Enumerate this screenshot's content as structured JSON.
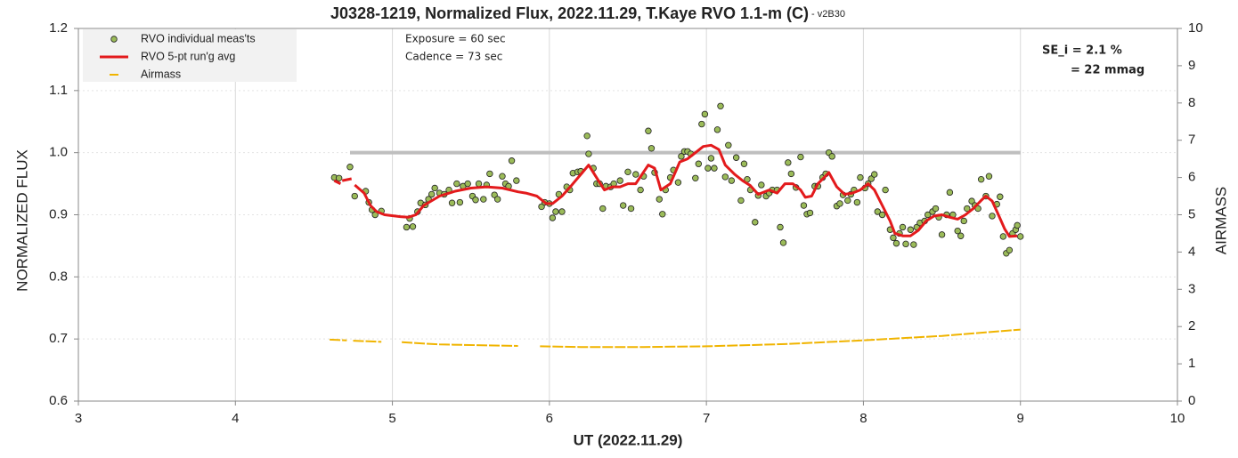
{
  "chart_data": {
    "type": "scatter",
    "title": "J0328-1219, Normalized Flux, 2022.11.29, T.Kaye RVO 1.1-m (C)",
    "subtitle": " - v2B30",
    "x_label": "UT (2022.11.29)",
    "y_label": "NORMALIZED FLUX",
    "y2_label": "AIRMASS",
    "annotations": [
      "Exposure = 60 sec",
      "Cadence  = 73 sec",
      "SE_i = 2.1 %",
      "= 22 mmag"
    ],
    "xlim": [
      3,
      10
    ],
    "xticks": [
      3,
      4,
      5,
      6,
      7,
      8,
      9,
      10
    ],
    "ylim": [
      0.6,
      1.2
    ],
    "yticks": [
      0.6,
      0.7,
      0.8,
      0.9,
      {
        "value": 1,
        "label": "1.0"
      },
      1.1,
      1.2
    ],
    "y2lim": [
      0,
      10
    ],
    "y2ticks": [
      0,
      1,
      2,
      3,
      4,
      5,
      6,
      7,
      8,
      9,
      10
    ],
    "grid": true,
    "legend": "upper left",
    "reference_line": {
      "x": [
        4.73,
        9.0
      ],
      "value": 1.0,
      "color": "#bfbfbf"
    },
    "series": [
      {
        "name": "RVO individual meas'ts",
        "type": "scatter",
        "color": "#9bbb59",
        "x": [
          4.63,
          4.66,
          4.73,
          4.76,
          4.83,
          4.85,
          4.87,
          4.89,
          4.93,
          5.09,
          5.11,
          5.13,
          5.16,
          5.18,
          5.21,
          5.23,
          5.25,
          5.27,
          5.3,
          5.33,
          5.36,
          5.38,
          5.41,
          5.43,
          5.45,
          5.48,
          5.51,
          5.53,
          5.55,
          5.58,
          5.6,
          5.62,
          5.65,
          5.67,
          5.7,
          5.72,
          5.74,
          5.76,
          5.79,
          5.95,
          5.97,
          6.0,
          6.02,
          6.04,
          6.06,
          6.08,
          6.11,
          6.13,
          6.15,
          6.18,
          6.2,
          6.24,
          6.25,
          6.28,
          6.3,
          6.32,
          6.34,
          6.36,
          6.39,
          6.41,
          6.45,
          6.47,
          6.5,
          6.52,
          6.55,
          6.58,
          6.6,
          6.63,
          6.65,
          6.67,
          6.7,
          6.72,
          6.74,
          6.77,
          6.79,
          6.82,
          6.84,
          6.86,
          6.88,
          6.9,
          6.93,
          6.95,
          6.97,
          6.99,
          7.01,
          7.03,
          7.05,
          7.07,
          7.09,
          7.12,
          7.14,
          7.16,
          7.19,
          7.22,
          7.24,
          7.26,
          7.28,
          7.31,
          7.33,
          7.35,
          7.38,
          7.4,
          7.42,
          7.45,
          7.47,
          7.49,
          7.52,
          7.54,
          7.57,
          7.6,
          7.62,
          7.64,
          7.66,
          7.69,
          7.71,
          7.74,
          7.76,
          7.78,
          7.8,
          7.83,
          7.85,
          7.87,
          7.9,
          7.92,
          7.94,
          7.96,
          7.98,
          8.01,
          8.03,
          8.05,
          8.07,
          8.09,
          8.12,
          8.14,
          8.17,
          8.19,
          8.21,
          8.23,
          8.25,
          8.27,
          8.3,
          8.32,
          8.34,
          8.36,
          8.39,
          8.41,
          8.44,
          8.46,
          8.48,
          8.5,
          8.53,
          8.55,
          8.57,
          8.6,
          8.62,
          8.64,
          8.66,
          8.69,
          8.71,
          8.73,
          8.75,
          8.78,
          8.8,
          8.82,
          8.85,
          8.87,
          8.89,
          8.91,
          8.93,
          8.95,
          8.97,
          8.98,
          9.0
        ],
        "values": [
          0.96,
          0.959,
          0.977,
          0.93,
          0.938,
          0.92,
          0.908,
          0.9,
          0.906,
          0.88,
          0.894,
          0.881,
          0.905,
          0.919,
          0.916,
          0.925,
          0.933,
          0.943,
          0.935,
          0.933,
          0.94,
          0.919,
          0.95,
          0.92,
          0.946,
          0.95,
          0.93,
          0.924,
          0.95,
          0.925,
          0.948,
          0.966,
          0.932,
          0.925,
          0.962,
          0.95,
          0.946,
          0.987,
          0.955,
          0.913,
          0.92,
          0.918,
          0.895,
          0.905,
          0.933,
          0.905,
          0.945,
          0.94,
          0.967,
          0.969,
          0.97,
          1.027,
          0.998,
          0.975,
          0.95,
          0.95,
          0.91,
          0.946,
          0.945,
          0.95,
          0.955,
          0.915,
          0.969,
          0.91,
          0.965,
          0.94,
          0.962,
          1.035,
          1.007,
          0.968,
          0.925,
          0.901,
          0.94,
          0.96,
          0.972,
          0.952,
          0.994,
          1.002,
          1.002,
          0.998,
          0.959,
          0.982,
          1.046,
          1.062,
          0.975,
          0.991,
          0.975,
          1.037,
          1.075,
          0.961,
          1.012,
          0.955,
          0.992,
          0.923,
          0.982,
          0.957,
          0.94,
          0.888,
          0.931,
          0.948,
          0.93,
          0.935,
          0.94,
          0.94,
          0.88,
          0.855,
          0.984,
          0.966,
          0.944,
          0.993,
          0.915,
          0.901,
          0.903,
          0.946,
          0.946,
          0.96,
          0.966,
          1.0,
          0.994,
          0.914,
          0.918,
          0.932,
          0.923,
          0.933,
          0.94,
          0.92,
          0.96,
          0.943,
          0.95,
          0.958,
          0.965,
          0.905,
          0.9,
          0.94,
          0.876,
          0.863,
          0.854,
          0.87,
          0.88,
          0.853,
          0.876,
          0.852,
          0.88,
          0.887,
          0.89,
          0.9,
          0.905,
          0.91,
          0.896,
          0.868,
          0.9,
          0.936,
          0.9,
          0.874,
          0.866,
          0.89,
          0.91,
          0.922,
          0.915,
          0.91,
          0.957,
          0.93,
          0.962,
          0.898,
          0.917,
          0.929,
          0.865,
          0.838,
          0.843,
          0.87,
          0.876,
          0.883,
          0.865
        ]
      },
      {
        "name": "RVO 5-pt run'g avg",
        "type": "line",
        "color": "#e31a1c",
        "x": [
          4.63,
          4.67,
          null,
          4.68,
          4.74,
          null,
          4.76,
          4.82,
          4.86,
          4.9,
          4.95,
          5.05,
          5.1,
          5.15,
          5.2,
          5.3,
          5.4,
          5.5,
          5.6,
          5.7,
          5.8,
          5.85,
          5.92,
          5.98,
          6.02,
          6.08,
          6.14,
          6.2,
          6.25,
          6.3,
          6.35,
          6.4,
          6.45,
          6.5,
          6.55,
          6.63,
          6.67,
          6.71,
          6.74,
          6.77,
          6.83,
          6.88,
          6.93,
          6.98,
          7.03,
          7.08,
          7.12,
          7.18,
          7.23,
          7.28,
          7.33,
          7.4,
          7.45,
          7.5,
          7.55,
          7.6,
          7.63,
          7.67,
          7.71,
          7.75,
          7.78,
          7.83,
          7.88,
          7.93,
          7.98,
          8.03,
          8.07,
          8.12,
          8.17,
          8.2,
          8.25,
          8.3,
          8.35,
          8.4,
          8.45,
          8.5,
          8.55,
          8.6,
          8.65,
          8.7,
          8.75,
          8.78,
          8.82,
          8.86,
          8.9,
          8.93,
          8.98
        ],
        "values": [
          0.955,
          0.95,
          null,
          0.955,
          0.958,
          null,
          0.948,
          0.935,
          0.915,
          0.905,
          0.9,
          0.897,
          0.896,
          0.9,
          0.915,
          0.93,
          0.938,
          0.943,
          0.945,
          0.943,
          0.937,
          0.935,
          0.93,
          0.918,
          0.918,
          0.93,
          0.947,
          0.965,
          0.98,
          0.96,
          0.94,
          0.945,
          0.945,
          0.95,
          0.95,
          0.98,
          0.975,
          0.94,
          0.945,
          0.95,
          0.985,
          0.99,
          1.0,
          1.01,
          1.012,
          1.005,
          0.98,
          0.965,
          0.955,
          0.947,
          0.933,
          0.94,
          0.935,
          0.95,
          0.95,
          0.94,
          0.928,
          0.93,
          0.95,
          0.96,
          0.968,
          0.945,
          0.933,
          0.935,
          0.94,
          0.95,
          0.94,
          0.915,
          0.89,
          0.87,
          0.866,
          0.866,
          0.875,
          0.89,
          0.898,
          0.9,
          0.896,
          0.893,
          0.9,
          0.91,
          0.923,
          0.93,
          0.922,
          0.9,
          0.877,
          0.865,
          0.866
        ]
      },
      {
        "name": "Airmass",
        "type": "line",
        "axis": "y2",
        "color": "#f0b400",
        "x": [
          4.6,
          4.71,
          null,
          4.75,
          4.93,
          null,
          5.06,
          5.3,
          5.8,
          null,
          5.94,
          6.2,
          6.6,
          7.0,
          7.5,
          8.0,
          8.5,
          9.0
        ],
        "values": [
          1.65,
          1.63,
          null,
          1.62,
          1.59,
          null,
          1.58,
          1.52,
          1.48,
          null,
          1.47,
          1.45,
          1.45,
          1.47,
          1.53,
          1.63,
          1.75,
          1.92
        ]
      }
    ]
  }
}
